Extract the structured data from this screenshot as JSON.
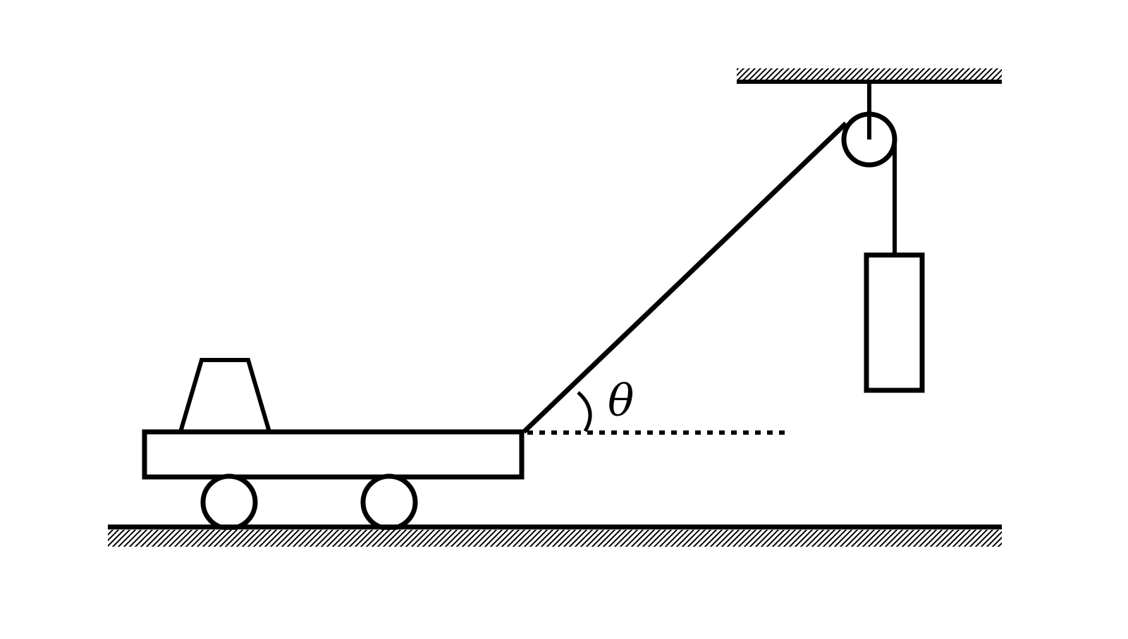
{
  "diagram": {
    "angle_label": "θ",
    "colors": {
      "stroke": "#000000",
      "background": "#ffffff"
    }
  }
}
